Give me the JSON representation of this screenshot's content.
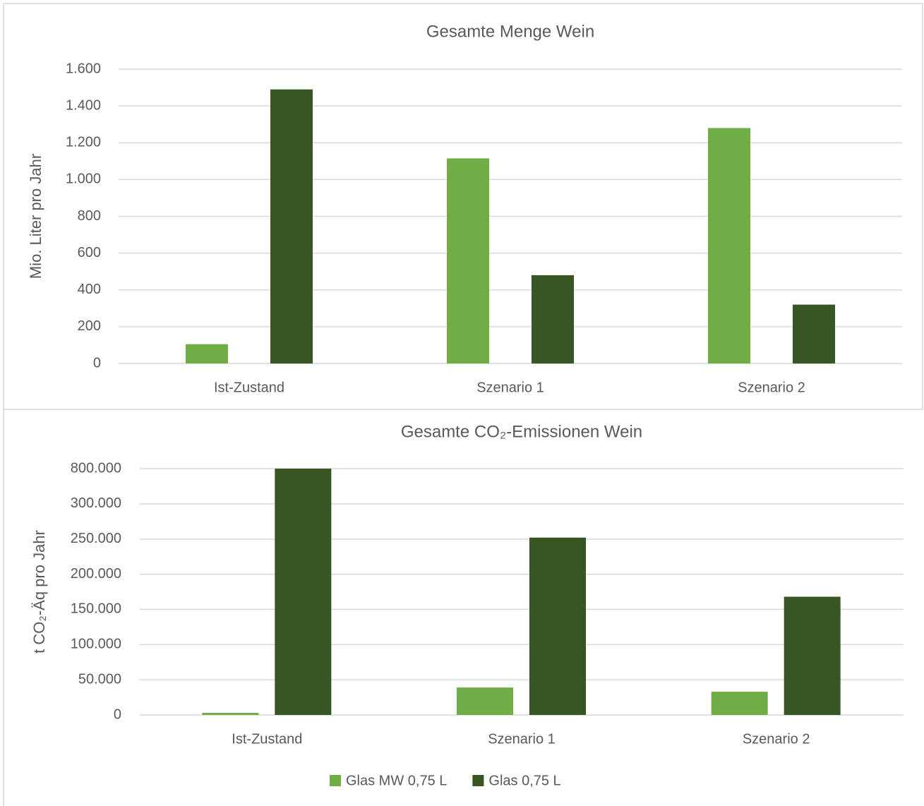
{
  "chart_data": [
    {
      "type": "bar",
      "title": "Gesamte Menge Wein",
      "y_label": "Mio. Liter pro Jahr",
      "categories": [
        "Ist-Zustand",
        "Szenario 1",
        "Szenario 2"
      ],
      "series": [
        {
          "color": "#70ad47",
          "values": [
            105,
            1115,
            1280
          ]
        },
        {
          "color": "#375623",
          "values": [
            1490,
            480,
            320
          ]
        }
      ],
      "ylim": [
        0,
        1600
      ],
      "yticks": [
        0,
        200,
        400,
        600,
        800,
        {
          "value": 1000,
          "label": "1.000"
        },
        {
          "value": 1200,
          "label": "1.200"
        },
        {
          "value": 1400,
          "label": "1.400"
        },
        {
          "value": 1600,
          "label": "1.600"
        }
      ],
      "grid": true
    },
    {
      "type": "bar",
      "title": "Gesamte CO₂-Emissionen Wein",
      "y_label": "t CO₂-Äq pro Jahr",
      "categories": [
        "Ist-Zustand",
        "Szenario 1",
        "Szenario 2"
      ],
      "series": [
        {
          "name": "Glas MW 0,75 L",
          "color": "#70ad47",
          "values": [
            3000,
            39000,
            33000
          ]
        },
        {
          "name": "Glas 0,75 L",
          "color": "#375623",
          "values": [
            800000,
            252000,
            168000
          ]
        }
      ],
      "ylim": [
        0,
        800000
      ],
      "yticks": [
        0,
        {
          "value": 50000,
          "label": "50.000"
        },
        {
          "value": 100000,
          "label": "100.000"
        },
        {
          "value": 150000,
          "label": "150.000"
        },
        {
          "value": 200000,
          "label": "200.000"
        },
        {
          "value": 250000,
          "label": "250.000"
        },
        {
          "value": 300000,
          "label": "300.000"
        },
        {
          "value": 800000,
          "label": "800.000"
        }
      ],
      "grid": true,
      "legend": "bottom"
    }
  ]
}
